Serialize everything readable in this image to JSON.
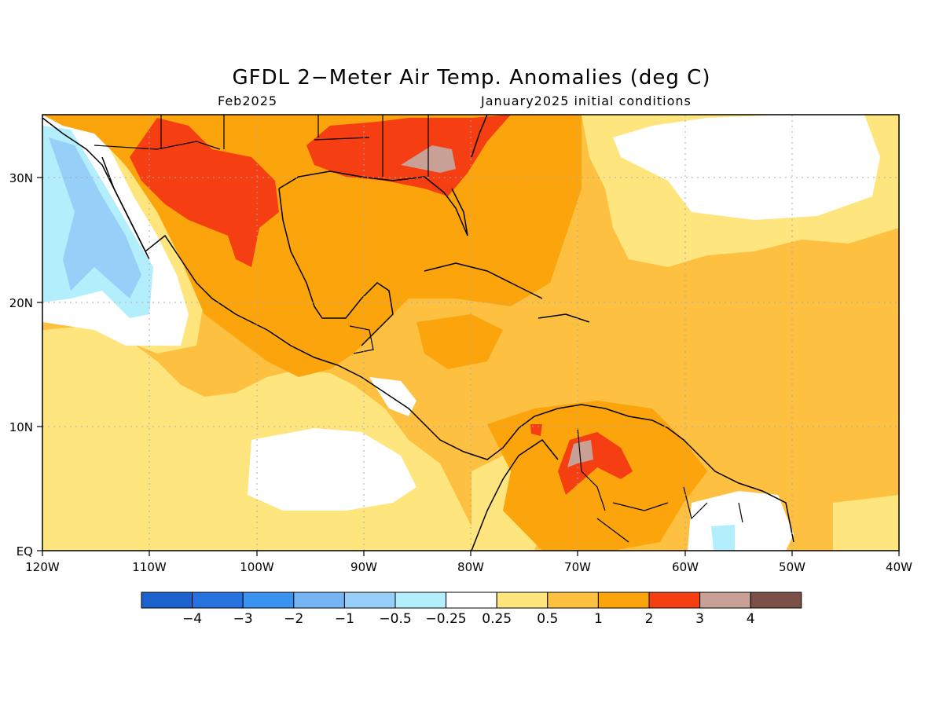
{
  "title": "GFDL 2−Meter Air Temp. Anomalies (deg C)",
  "subtitle_left": "Feb2025",
  "subtitle_right": "January2025 initial conditions",
  "map": {
    "lon_labels": [
      "120W",
      "110W",
      "100W",
      "90W",
      "80W",
      "70W",
      "60W",
      "50W",
      "40W"
    ],
    "lat_labels": [
      "EQ",
      "10N",
      "20N",
      "30N"
    ],
    "lon_range": [
      -120,
      -40
    ],
    "lat_range": [
      0,
      35
    ]
  },
  "colorbar": {
    "colors": [
      "#1b62cc",
      "#2673e0",
      "#3a93f0",
      "#77b4f3",
      "#96cff7",
      "#b2eefc",
      "#ffffff",
      "#fee57d",
      "#fec040",
      "#fba40c",
      "#f53e11",
      "#c9a096",
      "#7b5147"
    ],
    "labels": [
      "−4",
      "−3",
      "−2",
      "−1",
      "−0.5",
      "−0.25",
      "0.25",
      "0.5",
      "1",
      "2",
      "3",
      "4"
    ]
  },
  "colors": {
    "ocean_base": "#fec040",
    "white": "#ffffff",
    "light_yellow": "#fee57d",
    "orange": "#fba40c",
    "red": "#f53e11",
    "mauve": "#c9a096",
    "light_blue": "#96cff7",
    "pale_blue": "#b2eefc"
  }
}
